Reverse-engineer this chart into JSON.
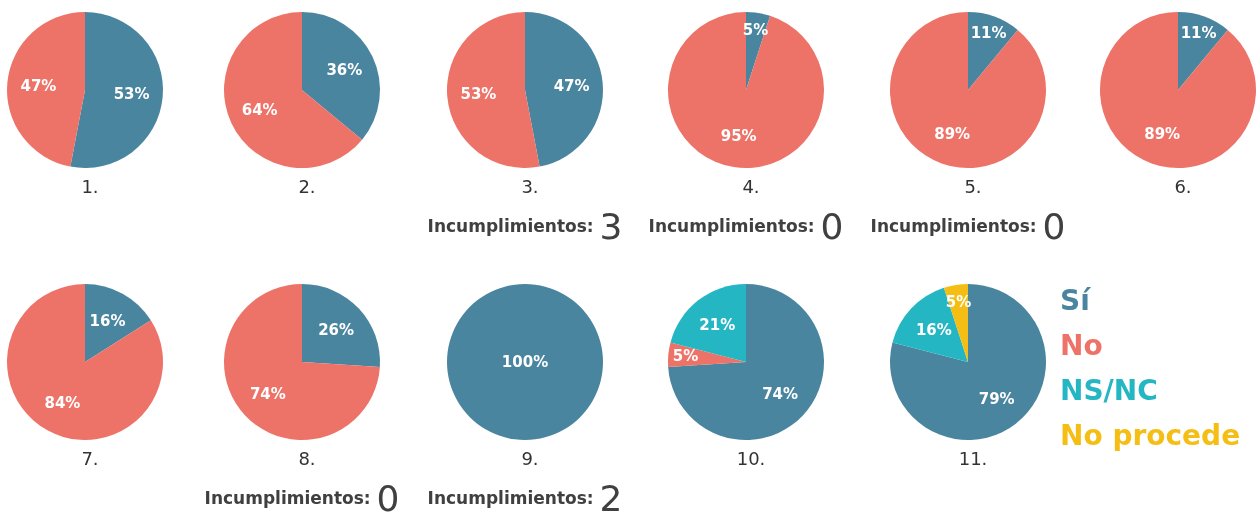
{
  "chart_data": [
    {
      "type": "pie",
      "title": "1.",
      "categories": [
        null,
        null
      ],
      "values": [
        53,
        47
      ],
      "colors": [
        "#4a85a0",
        "#ed7268"
      ],
      "value_labels": [
        "53%",
        "47%"
      ]
    },
    {
      "type": "pie",
      "title": "2.",
      "categories": [
        null,
        null
      ],
      "values": [
        36,
        64
      ],
      "colors": [
        "#4a85a0",
        "#ed7268"
      ],
      "value_labels": [
        "36%",
        "64%"
      ]
    },
    {
      "type": "pie",
      "title": "3.",
      "categories": [
        null,
        null
      ],
      "values": [
        47,
        53
      ],
      "colors": [
        "#4a85a0",
        "#ed7268"
      ],
      "value_labels": [
        "47%",
        "53%"
      ],
      "annotations": [
        "Incumplimientos: 3"
      ]
    },
    {
      "type": "pie",
      "title": "4.",
      "categories": [
        null,
        null
      ],
      "values": [
        5,
        95
      ],
      "colors": [
        "#4a85a0",
        "#ed7268"
      ],
      "value_labels": [
        "5%",
        "95%"
      ],
      "annotations": [
        "Incumplimientos: 0"
      ]
    },
    {
      "type": "pie",
      "title": "5.",
      "categories": [
        null,
        null
      ],
      "values": [
        11,
        89
      ],
      "colors": [
        "#4a85a0",
        "#ed7268"
      ],
      "value_labels": [
        "11%",
        "89%"
      ],
      "annotations": [
        "Incumplimientos: 0"
      ]
    },
    {
      "type": "pie",
      "title": "6.",
      "categories": [
        null,
        null
      ],
      "values": [
        11,
        89
      ],
      "colors": [
        "#4a85a0",
        "#ed7268"
      ],
      "value_labels": [
        "11%",
        "89%"
      ]
    },
    {
      "type": "pie",
      "title": "7.",
      "categories": [
        null,
        null
      ],
      "values": [
        16,
        84
      ],
      "colors": [
        "#4a85a0",
        "#ed7268"
      ],
      "value_labels": [
        "16%",
        "84%"
      ]
    },
    {
      "type": "pie",
      "title": "8.",
      "categories": [
        null,
        null
      ],
      "values": [
        26,
        74
      ],
      "colors": [
        "#4a85a0",
        "#ed7268"
      ],
      "value_labels": [
        "26%",
        "74%"
      ],
      "annotations": [
        "Incumplimientos: 0"
      ]
    },
    {
      "type": "pie",
      "title": "9.",
      "categories": [
        null
      ],
      "values": [
        100
      ],
      "colors": [
        "#4a85a0"
      ],
      "value_labels": [
        "100%"
      ],
      "annotations": [
        "Incumplimientos: 2"
      ]
    },
    {
      "type": "pie",
      "title": "10.",
      "categories": [
        null,
        null,
        null
      ],
      "values": [
        74,
        5,
        21
      ],
      "colors": [
        "#4a85a0",
        "#ed7268",
        "#25b6c3"
      ],
      "value_labels": [
        "74%",
        "5%",
        "21%"
      ]
    },
    {
      "type": "pie",
      "title": "11.",
      "categories": [
        null,
        null,
        null
      ],
      "values": [
        79,
        16,
        5
      ],
      "colors": [
        "#4a85a0",
        "#25b6c3",
        "#f5be14"
      ],
      "value_labels": [
        "79%",
        "16%",
        "5%"
      ]
    },
    {
      "type": "other",
      "categories": [
        "Sí",
        "No",
        "NS/NC",
        "No procede"
      ],
      "colors": [
        "#4a85a0",
        "#ed7268",
        "#25b6c3",
        "#f5be14"
      ]
    }
  ]
}
